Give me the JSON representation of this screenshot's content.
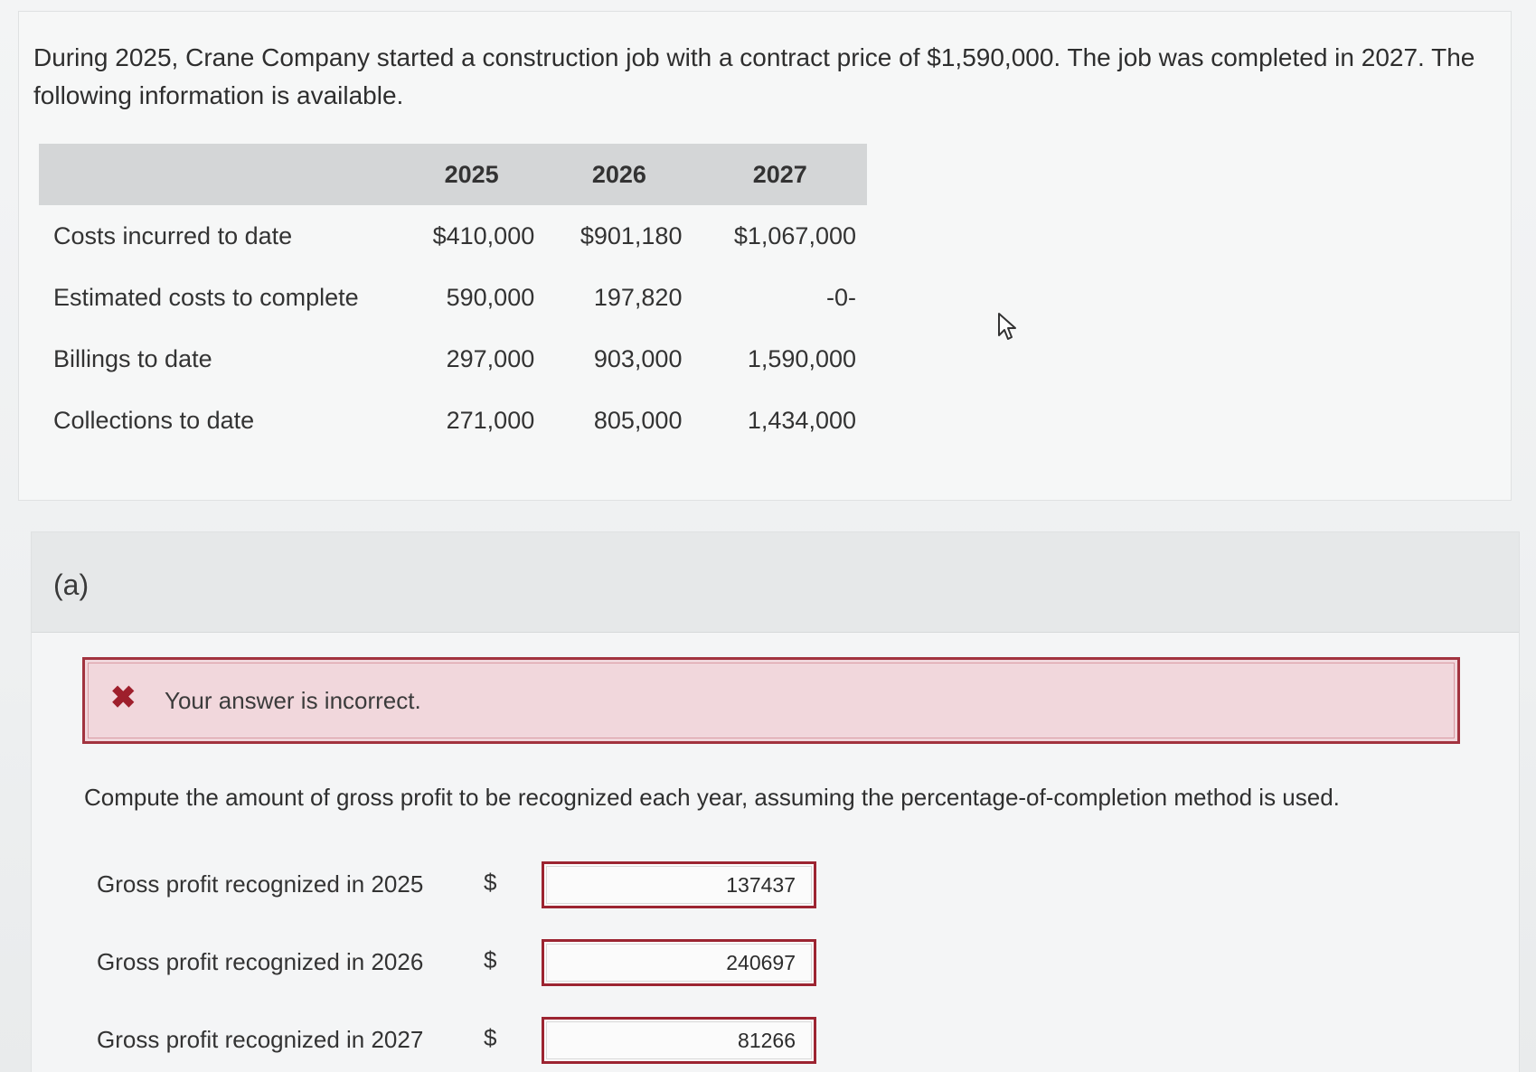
{
  "problem": {
    "text": "During 2025, Crane Company started a construction job with a contract price of $1,590,000. The job was completed in 2027. The following information is available."
  },
  "table": {
    "headers": [
      "",
      "2025",
      "2026",
      "2027"
    ],
    "rows": [
      {
        "label": "Costs incurred to date",
        "values": [
          "$410,000",
          "$901,180",
          "$1,067,000"
        ]
      },
      {
        "label": "Estimated costs to complete",
        "values": [
          "590,000",
          "197,820",
          "-0-"
        ]
      },
      {
        "label": "Billings to date",
        "values": [
          "297,000",
          "903,000",
          "1,590,000"
        ]
      },
      {
        "label": "Collections to date",
        "values": [
          "271,000",
          "805,000",
          "1,434,000"
        ]
      }
    ]
  },
  "part": {
    "label": "(a)",
    "feedback": {
      "icon": "x-icon",
      "symbol": "✖",
      "text": "Your answer is incorrect."
    },
    "instruction": "Compute the amount of gross profit to be recognized each year, assuming the percentage-of-completion method is used.",
    "answers": [
      {
        "label": "Gross profit recognized in 2025",
        "currency": "$",
        "value": "137437"
      },
      {
        "label": "Gross profit recognized in 2026",
        "currency": "$",
        "value": "240697"
      },
      {
        "label": "Gross profit recognized in 2027",
        "currency": "$",
        "value": "81266"
      }
    ]
  },
  "colors": {
    "error_border": "#a2333f",
    "error_background": "#f1d7dc",
    "table_header": "#d4d6d7"
  }
}
